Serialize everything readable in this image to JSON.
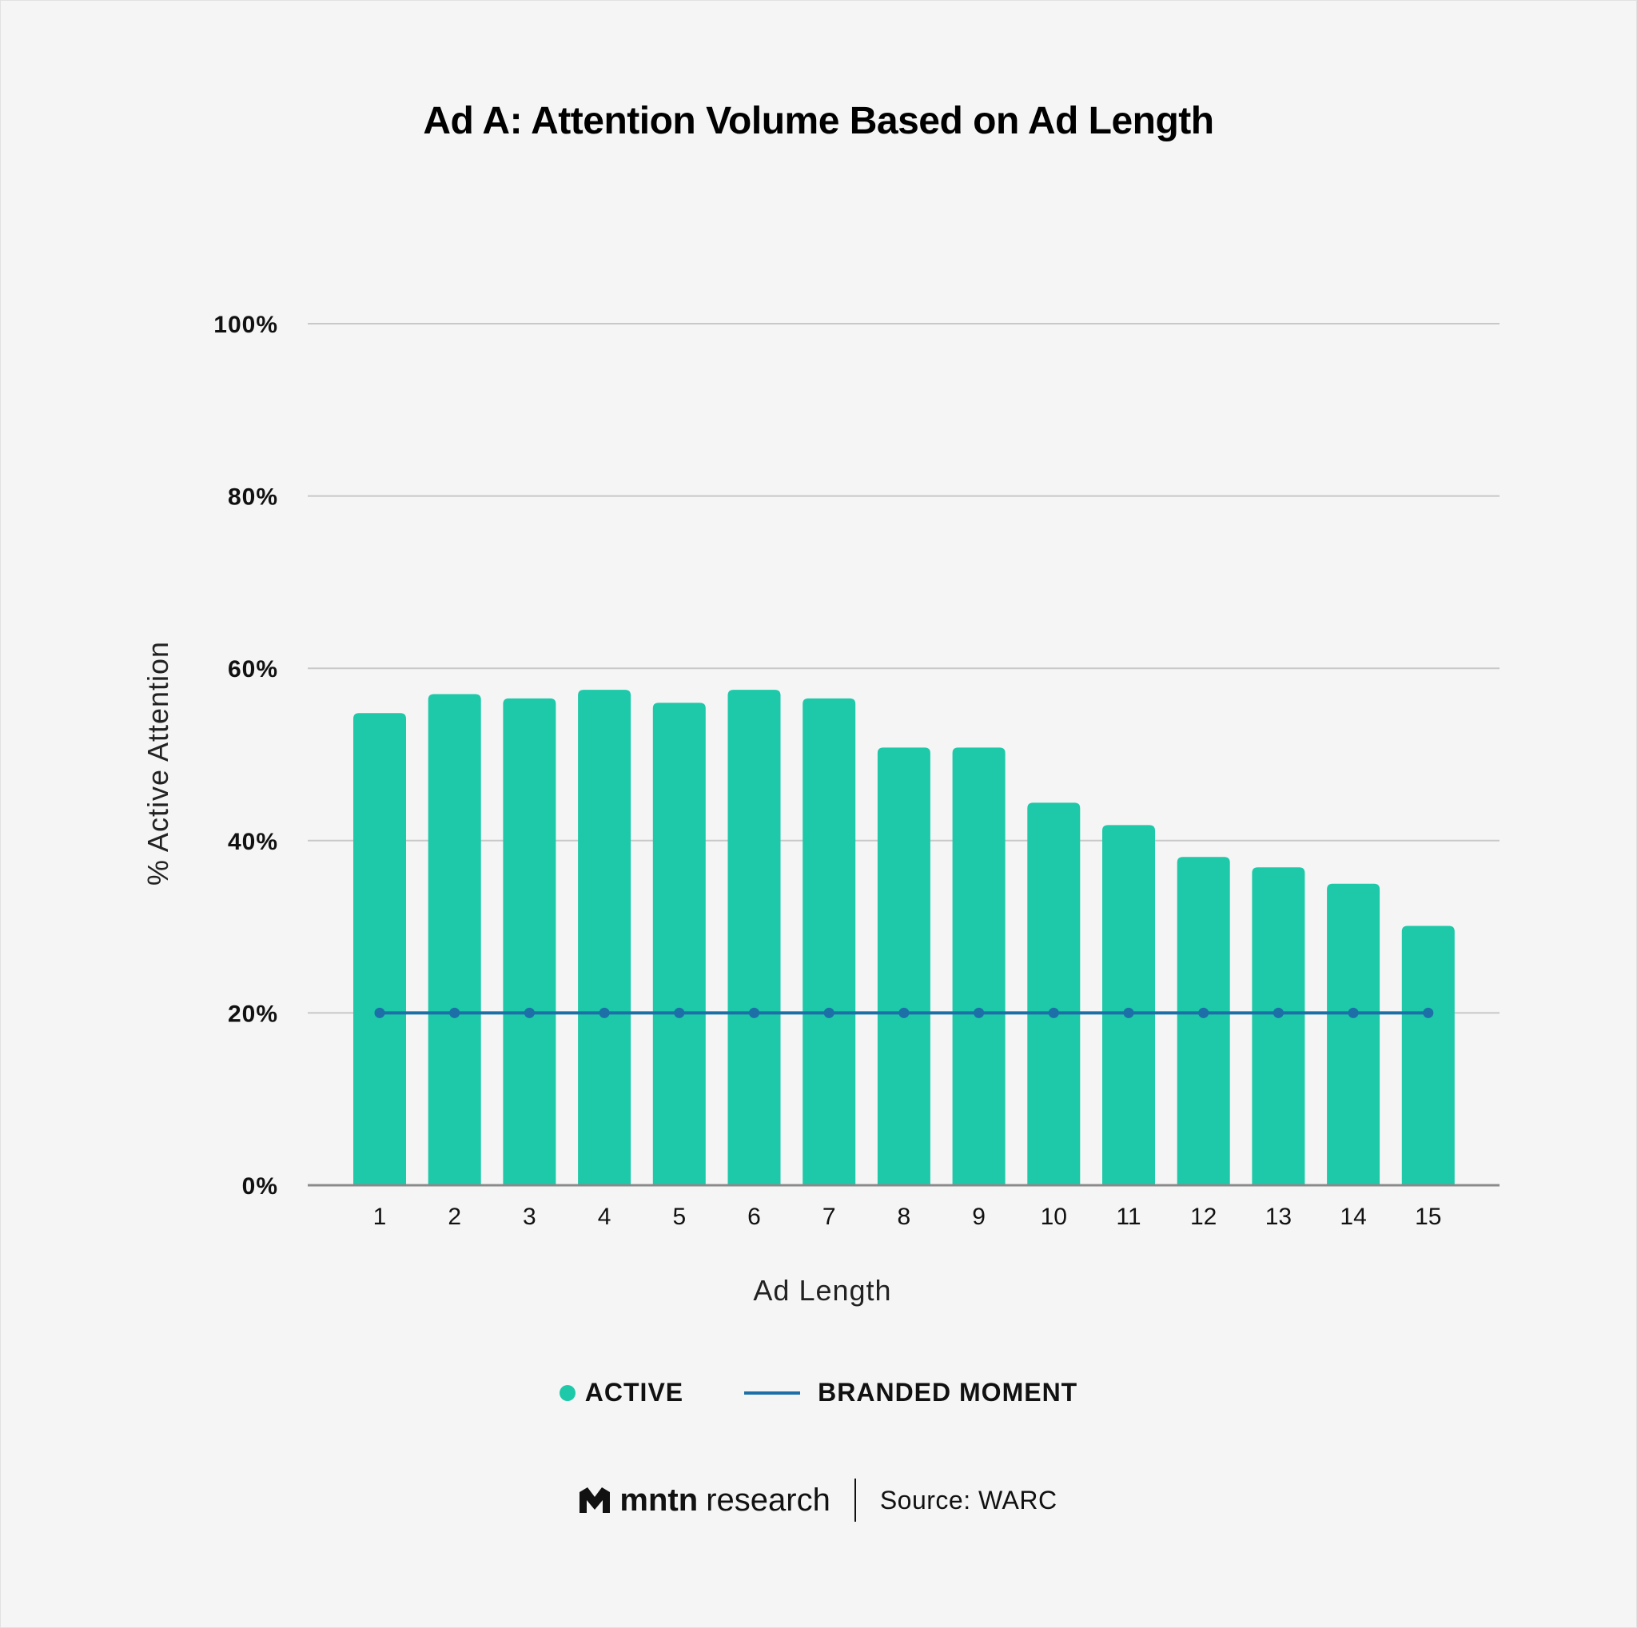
{
  "header": {
    "title": "Ad A: Attention Volume Based on Ad Length"
  },
  "legend": {
    "active_label": "ACTIVE",
    "branded_label": "BRANDED MOMENT"
  },
  "footer": {
    "brand_bold": "mntn",
    "brand_light": "research",
    "source": "Source: WARC"
  },
  "colors": {
    "active": "#1dc9a9",
    "branded": "#1d6fa8",
    "grid": "#c8c8c8",
    "axis": "#8a8a8a"
  },
  "chart_data": {
    "type": "bar",
    "title": "Ad A: Attention Volume Based on Ad Length",
    "xlabel": "Ad Length",
    "ylabel": "% Active Attention",
    "ylim": [
      0,
      100
    ],
    "yticks": [
      "0%",
      "20%",
      "40%",
      "60%",
      "80%",
      "100%"
    ],
    "ytick_values": [
      0,
      20,
      40,
      60,
      80,
      100
    ],
    "grid": true,
    "legend_position": "bottom",
    "categories": [
      "1",
      "2",
      "3",
      "4",
      "5",
      "6",
      "7",
      "8",
      "9",
      "10",
      "11",
      "12",
      "13",
      "14",
      "15"
    ],
    "series": [
      {
        "name": "ACTIVE",
        "type": "bar",
        "values": [
          54.8,
          57.0,
          56.5,
          57.5,
          56.0,
          57.5,
          56.5,
          50.8,
          50.8,
          44.4,
          41.8,
          38.1,
          36.9,
          35.0,
          30.1
        ]
      },
      {
        "name": "BRANDED MOMENT",
        "type": "line",
        "values": [
          20,
          20,
          20,
          20,
          20,
          20,
          20,
          20,
          20,
          20,
          20,
          20,
          20,
          20,
          20
        ]
      }
    ]
  }
}
